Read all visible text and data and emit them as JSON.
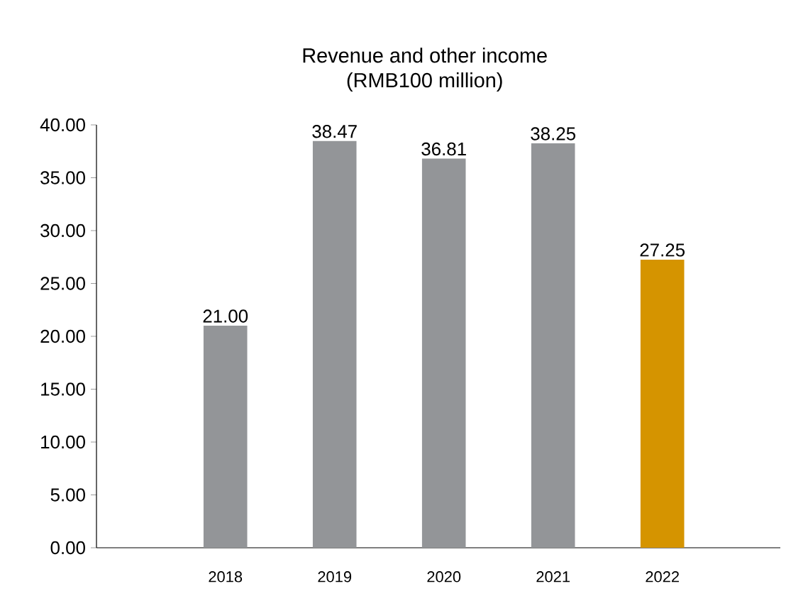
{
  "chart_data": {
    "type": "bar",
    "title": "Revenue and other income",
    "subtitle": "(RMB100 million)",
    "categories": [
      "2018",
      "2019",
      "2020",
      "2021",
      "2022"
    ],
    "values": [
      21.0,
      38.47,
      36.81,
      38.25,
      27.25
    ],
    "value_labels": [
      "21.00",
      "38.47",
      "36.81",
      "38.25",
      "27.25"
    ],
    "colors": [
      "#939598",
      "#939598",
      "#939598",
      "#939598",
      "#d59400"
    ],
    "ylim": [
      0,
      40
    ],
    "yticks": [
      {
        "value": 0,
        "label": "0.00"
      },
      {
        "value": 5,
        "label": "5.00"
      },
      {
        "value": 10,
        "label": "10.00"
      },
      {
        "value": 15,
        "label": "15.00"
      },
      {
        "value": 20,
        "label": "20.00"
      },
      {
        "value": 25,
        "label": "25.00"
      },
      {
        "value": 30,
        "label": "30.00"
      },
      {
        "value": 35,
        "label": "35.00"
      },
      {
        "value": 40,
        "label": "40.00"
      }
    ],
    "grid": false
  }
}
